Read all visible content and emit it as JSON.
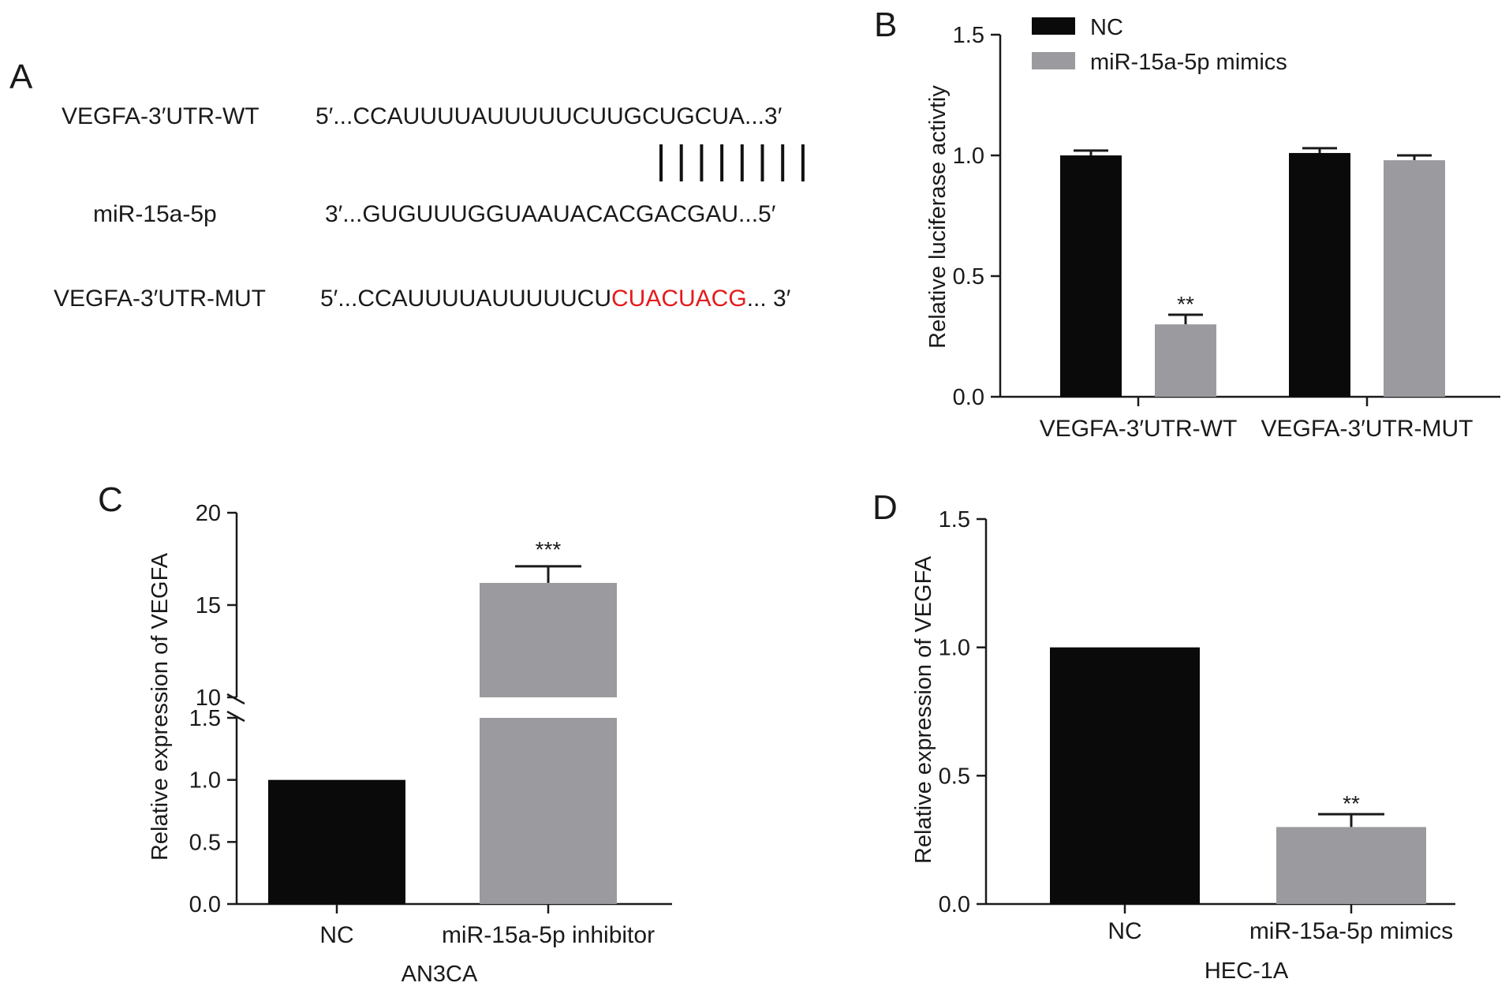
{
  "panel_letters": {
    "a": "A",
    "b": "B",
    "c": "C",
    "d": "D"
  },
  "panel_a": {
    "rows": [
      {
        "label": "VEGFA-3′UTR-WT",
        "prefix": "5′...",
        "sequence": "CCAUUUUAUUUUUCUUGCUGCUA",
        "suffix": "...3′"
      },
      {
        "label": "miR-15a-5p",
        "prefix": "3′...",
        "sequence": "GUGUUUGGUAAUACACGACGAU",
        "suffix": "...5′"
      },
      {
        "label": "VEGFA-3′UTR-MUT",
        "prefix": "5′...",
        "sequence": "CCAUUUUAUUUUUCU",
        "mutated": "CUACUACG",
        "suffix": "... 3′"
      }
    ],
    "pair_lines": 8,
    "mutation_color": "#e41a1c"
  },
  "colors": {
    "nc": "#0a0a0a",
    "treatment": "#9b9b9f",
    "axis": "#1a1a1a"
  },
  "chart_data": [
    {
      "panel": "B",
      "type": "bar",
      "categories": [
        "VEGFA-3′UTR-WT",
        "VEGFA-3′UTR-MUT"
      ],
      "series": [
        {
          "name": "NC",
          "values": [
            1.0,
            1.01
          ],
          "errors": [
            0.02,
            0.02
          ],
          "color": "#0a0a0a"
        },
        {
          "name": "miR-15a-5p mimics",
          "values": [
            0.3,
            0.98
          ],
          "errors": [
            0.04,
            0.02
          ],
          "color": "#9b9b9f"
        }
      ],
      "annotations": [
        {
          "category": 0,
          "series": 1,
          "text": "**"
        }
      ],
      "ylabel": "Relative luciferase activtiy",
      "ylim": [
        0,
        1.5
      ],
      "yticks": [
        "0.0",
        "0.5",
        "1.0",
        "1.5"
      ],
      "legend": "top-left",
      "grid": false
    },
    {
      "panel": "C",
      "type": "bar",
      "categories": [
        "NC",
        "miR-15a-5p inhibitor"
      ],
      "values": [
        1.0,
        16.2
      ],
      "errors": [
        0,
        0.9
      ],
      "colors": [
        "#0a0a0a",
        "#9b9b9f"
      ],
      "annotations": [
        {
          "category": 1,
          "text": "***"
        }
      ],
      "xlabel": "AN3CA",
      "ylabel": "Relative expression of VEGFA",
      "ylim": [
        0,
        20
      ],
      "axis_break": {
        "lower": [
          0,
          1.5
        ],
        "upper": [
          10,
          20
        ]
      },
      "yticks_lower": [
        "0.0",
        "0.5",
        "1.0",
        "1.5"
      ],
      "yticks_upper": [
        "10",
        "15",
        "20"
      ],
      "grid": false
    },
    {
      "panel": "D",
      "type": "bar",
      "categories": [
        "NC",
        "miR-15a-5p mimics"
      ],
      "values": [
        1.0,
        0.3
      ],
      "errors": [
        0,
        0.05
      ],
      "colors": [
        "#0a0a0a",
        "#9b9b9f"
      ],
      "annotations": [
        {
          "category": 1,
          "text": "**"
        }
      ],
      "xlabel": "HEC-1A",
      "ylabel": "Relative expression of VEGFA",
      "ylim": [
        0,
        1.5
      ],
      "yticks": [
        "0.0",
        "0.5",
        "1.0",
        "1.5"
      ],
      "grid": false
    }
  ]
}
